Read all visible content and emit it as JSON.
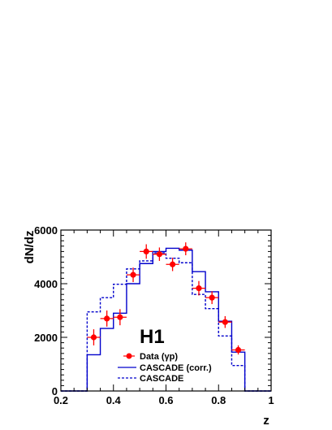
{
  "chart_data": {
    "type": "histogram",
    "title": "H1",
    "xlabel": "z",
    "ylabel": "dN/dz",
    "xlim": [
      0.2,
      1.0
    ],
    "ylim": [
      0,
      6000
    ],
    "x_ticks": [
      "0.2",
      "0.4",
      "0.6",
      "0.8",
      "1"
    ],
    "y_ticks": [
      "0",
      "2000",
      "4000",
      "6000"
    ],
    "bin_edges": [
      0.2,
      0.25,
      0.3,
      0.35,
      0.4,
      0.45,
      0.5,
      0.55,
      0.6,
      0.65,
      0.7,
      0.75,
      0.8,
      0.85,
      0.9,
      0.95,
      1.0
    ],
    "legend_position": "bottom-left",
    "legend": {
      "data": "Data (γp)",
      "corr": "CASCADE (corr.)",
      "cascade": "CASCADE"
    },
    "series": [
      {
        "key": "data",
        "name": "Data (γp)",
        "style": "points",
        "color": "#ff0000",
        "x": [
          0.325,
          0.375,
          0.425,
          0.475,
          0.525,
          0.575,
          0.625,
          0.675,
          0.725,
          0.775,
          0.825,
          0.875
        ],
        "y": [
          2000,
          2700,
          2750,
          4330,
          5200,
          5100,
          4720,
          5300,
          3830,
          3480,
          2570,
          1530
        ],
        "yerr": [
          300,
          300,
          300,
          270,
          270,
          250,
          250,
          240,
          270,
          240,
          220,
          170
        ]
      },
      {
        "key": "corr",
        "name": "CASCADE (corr.)",
        "style": "solid-step",
        "color": "#0000cc",
        "values": [
          0,
          0,
          1350,
          2330,
          2900,
          4000,
          4750,
          5200,
          5320,
          5250,
          4450,
          3700,
          2600,
          1450,
          0,
          0
        ]
      },
      {
        "key": "cascade",
        "name": "CASCADE",
        "style": "dashed-step",
        "color": "#0000cc",
        "values": [
          0,
          0,
          2950,
          3480,
          3980,
          4550,
          4850,
          5150,
          4950,
          4780,
          3600,
          3070,
          2050,
          950,
          0,
          0
        ]
      }
    ]
  }
}
